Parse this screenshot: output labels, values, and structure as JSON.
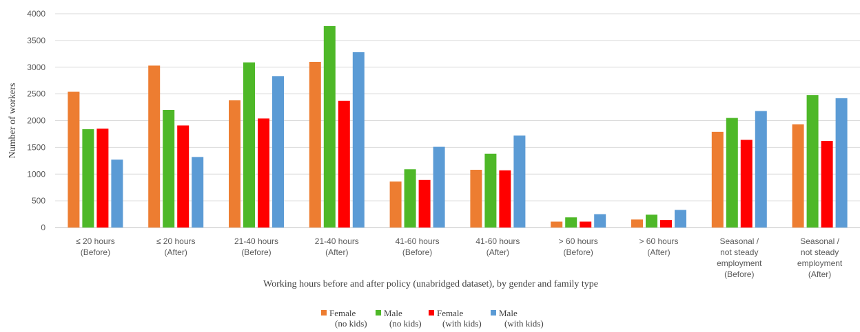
{
  "chart_data": {
    "type": "bar",
    "title": "",
    "xlabel": "Working hours before and after policy (unabridged dataset), by gender and family type",
    "ylabel": "Number of workers",
    "ylim": [
      0,
      4000
    ],
    "yticks": [
      0,
      500,
      1000,
      1500,
      2000,
      2500,
      3000,
      3500,
      4000
    ],
    "grid": true,
    "legend_position": "bottom",
    "categories": [
      [
        "≤ 20 hours",
        "(Before)"
      ],
      [
        "≤ 20 hours",
        "(After)"
      ],
      [
        "21-40 hours",
        "(Before)"
      ],
      [
        "21-40 hours",
        "(After)"
      ],
      [
        "41-60 hours",
        "(Before)"
      ],
      [
        "41-60 hours",
        "(After)"
      ],
      [
        "> 60 hours",
        "(Before)"
      ],
      [
        "> 60 hours",
        "(After)"
      ],
      [
        "Seasonal /",
        "not steady",
        "employment",
        "(Before)"
      ],
      [
        "Seasonal /",
        "not steady",
        "employment",
        "(After)"
      ]
    ],
    "series": [
      {
        "name": [
          "Female",
          "(no kids)"
        ],
        "color": "#ED7D31",
        "values": [
          2540,
          3030,
          2380,
          3100,
          860,
          1080,
          110,
          150,
          1790,
          1930
        ]
      },
      {
        "name": [
          "Male",
          "(no kids)"
        ],
        "color": "#4EB828",
        "values": [
          1840,
          2200,
          3090,
          3770,
          1090,
          1380,
          190,
          240,
          2050,
          2480
        ]
      },
      {
        "name": [
          "Female",
          "(with kids)"
        ],
        "color": "#FF0000",
        "values": [
          1850,
          1910,
          2040,
          2370,
          890,
          1070,
          110,
          140,
          1640,
          1620
        ]
      },
      {
        "name": [
          "Male",
          "(with kids)"
        ],
        "color": "#5B9BD5",
        "values": [
          1270,
          1320,
          2830,
          3280,
          1510,
          1720,
          250,
          330,
          2180,
          2420
        ]
      }
    ]
  }
}
